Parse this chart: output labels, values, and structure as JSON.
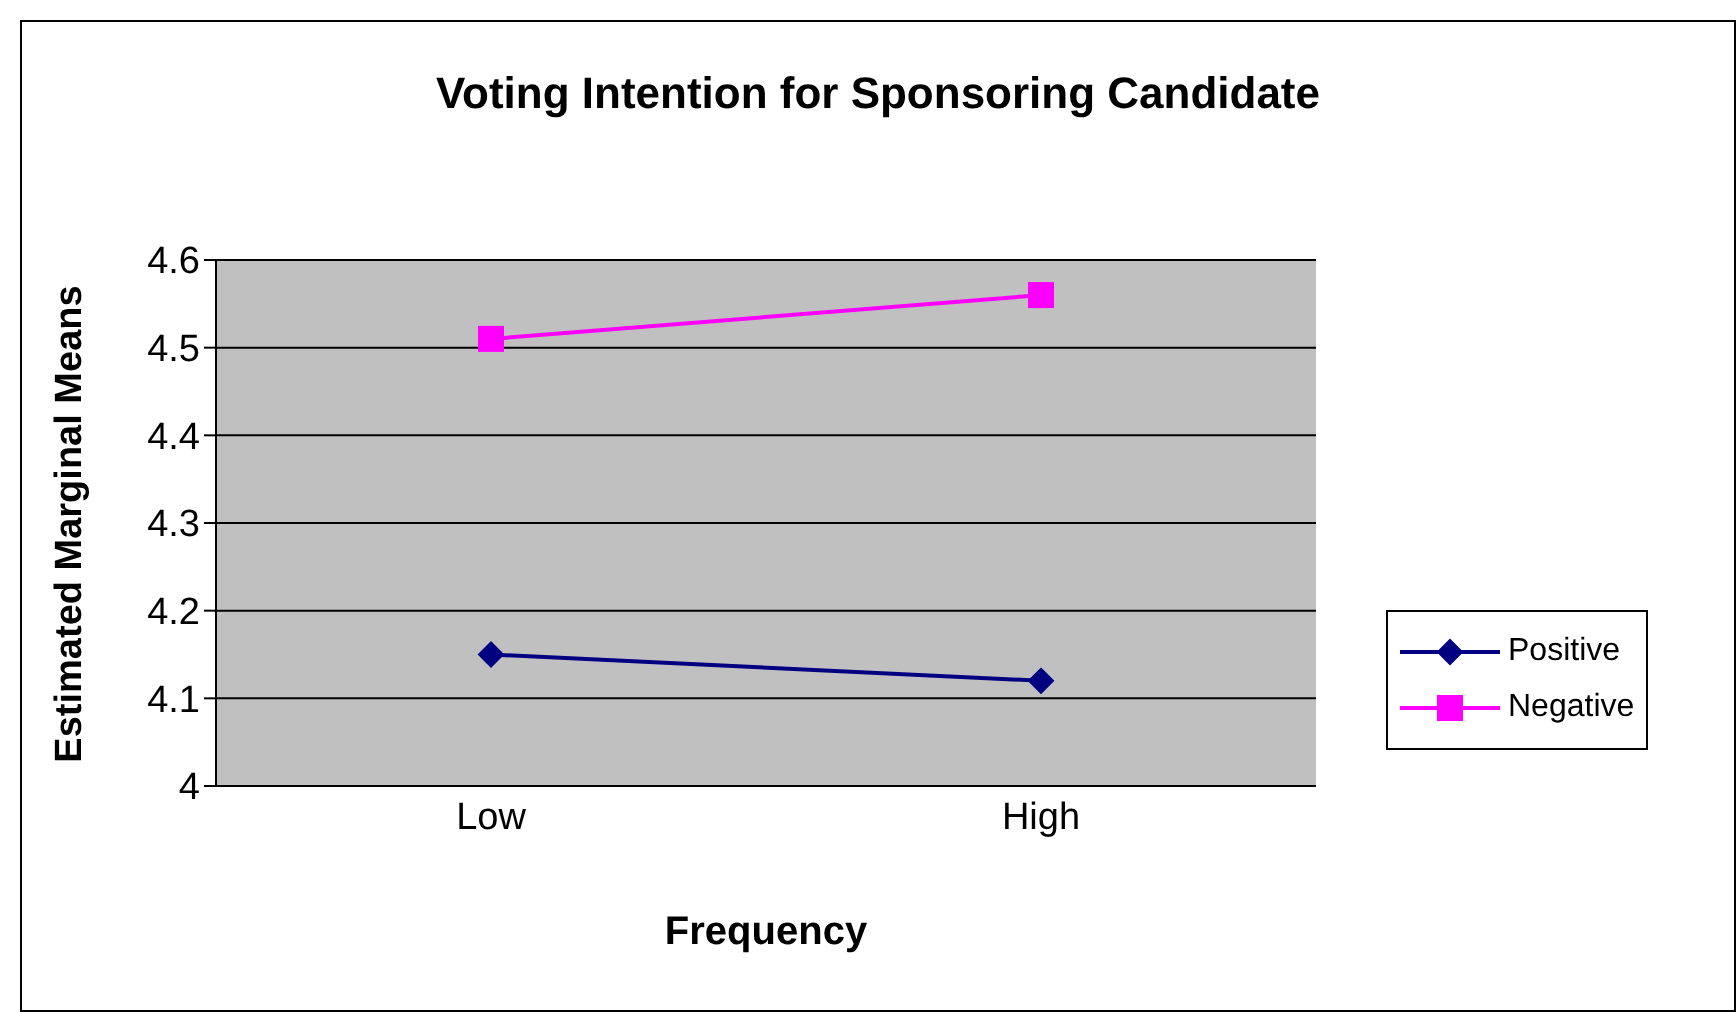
{
  "chart_data": {
    "type": "line",
    "title": "Voting Intention for Sponsoring Candidate",
    "xlabel": "Frequency",
    "ylabel": "Estimated Marginal Means",
    "categories": [
      "Low",
      "High"
    ],
    "series": [
      {
        "name": "Positive",
        "color": "#000080",
        "values": [
          4.15,
          4.12
        ],
        "marker": "diamond"
      },
      {
        "name": "Negative",
        "color": "#ff00ff",
        "values": [
          4.51,
          4.56
        ],
        "marker": "square"
      }
    ],
    "ylim": [
      4,
      4.6
    ],
    "yticks": [
      4,
      4.1,
      4.2,
      4.3,
      4.4,
      4.5,
      4.6
    ],
    "grid": "y",
    "legend": "right",
    "line_style": "solid"
  }
}
